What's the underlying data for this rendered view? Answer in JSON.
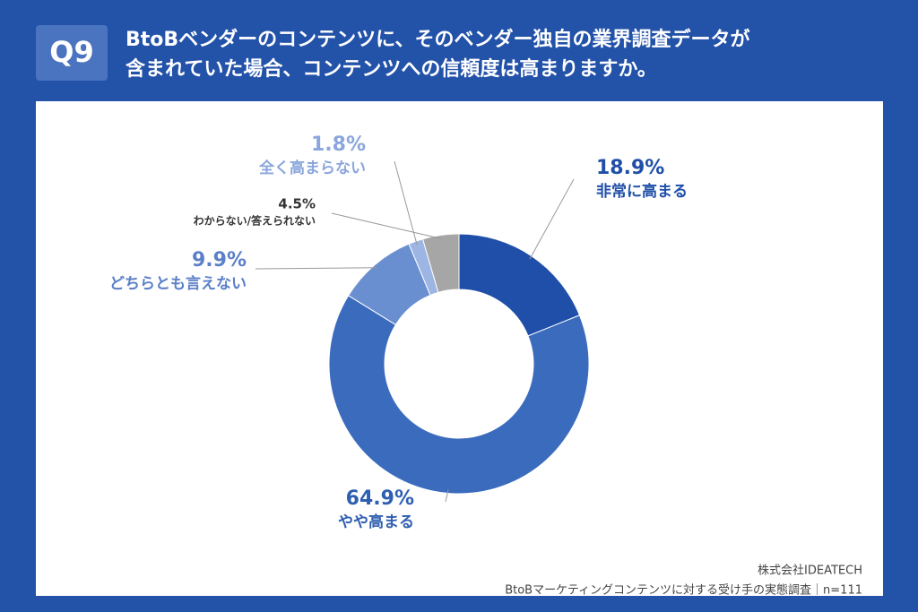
{
  "chart_data": {
    "type": "donut",
    "question_number": "Q9",
    "title_lines": [
      "BtoBベンダーのコンテンツに、そのベンダー独自の業界調査データが",
      "含まれていた場合、コンテンツへの信頼度は高まりますか。"
    ],
    "categories": [
      "非常に高まる",
      "やや高まる",
      "どちらとも言えない",
      "全く高まらない",
      "わからない/答えられない"
    ],
    "values": [
      18.9,
      64.9,
      9.9,
      1.8,
      4.5
    ],
    "value_labels": [
      "18.9%",
      "64.9%",
      "9.9%",
      "1.8%",
      "4.5%"
    ],
    "colors": [
      "#1f4fa8",
      "#3a6bbd",
      "#6a8fd0",
      "#9db5e3",
      "#a6a6a6"
    ],
    "source": [
      "株式会社IDEATECH",
      "BtoBマーケティングコンテンツに対する受け手の実態調査｜n=111"
    ]
  }
}
